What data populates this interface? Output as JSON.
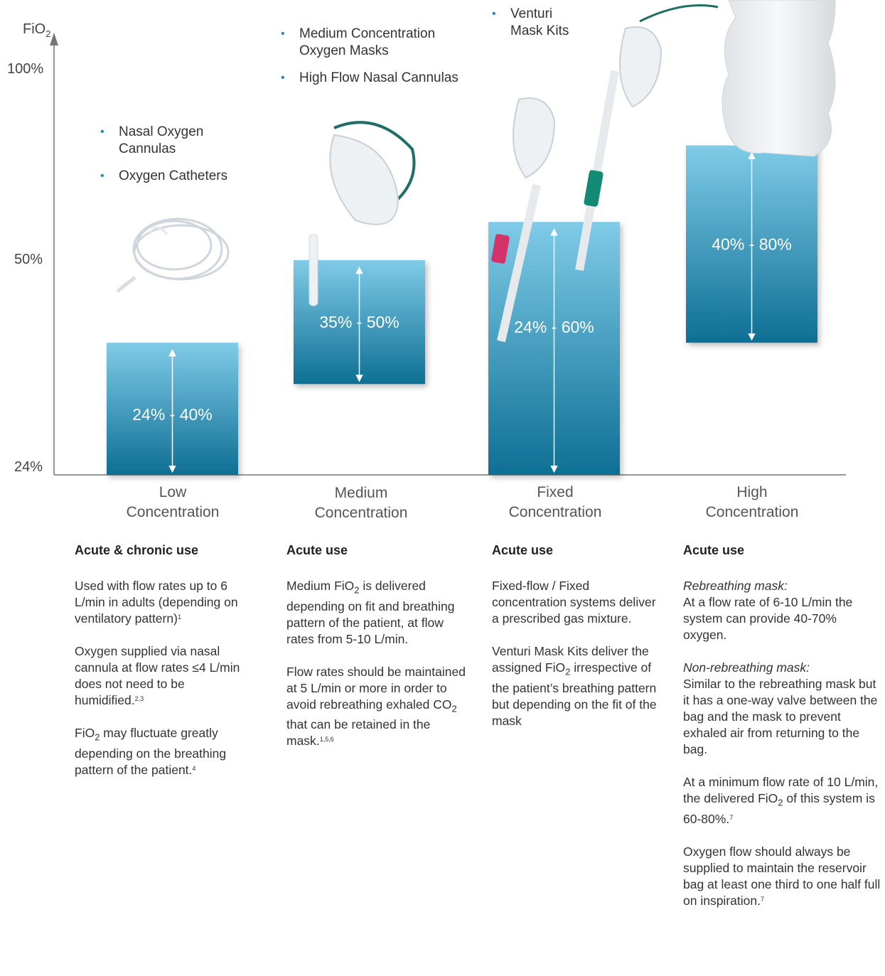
{
  "chart_data": {
    "type": "bar",
    "y_axis_label": "FiO2",
    "y_ticks": [
      "24%",
      "50%",
      "100%"
    ],
    "categories": [
      "Low Concentration",
      "Medium Concentration",
      "Fixed Concentration",
      "High Concentration"
    ],
    "ranges": [
      {
        "category": "Low Concentration",
        "low": 24,
        "high": 40,
        "label": "24% - 40%"
      },
      {
        "category": "Medium Concentration",
        "low": 35,
        "high": 50,
        "label": "35% - 50%"
      },
      {
        "category": "Fixed Concentration",
        "low": 24,
        "high": 60,
        "label": "24% - 60%"
      },
      {
        "category": "High Concentration",
        "low": 40,
        "high": 80,
        "label": "40% - 80%"
      }
    ],
    "colors": {
      "bar_top": "#7fcbe8",
      "bar_bottom": "#0e6f94",
      "axis": "#777777",
      "bullet": "#1b8fb5"
    }
  },
  "axis": {
    "fio_text": "FiO",
    "fio_sub": "2",
    "tick_100": "100%",
    "tick_50": "50%",
    "tick_24": "24%"
  },
  "bar_labels": {
    "low": "24% - 40%",
    "medium": "35% - 50%",
    "fixed": "24% - 60%",
    "high": "40% - 80%"
  },
  "categories": {
    "low": {
      "line1": "Low",
      "line2": "Concentration"
    },
    "medium": {
      "line1": "Medium",
      "line2": "Concentration"
    },
    "fixed": {
      "line1": "Fixed",
      "line2": "Concentration"
    },
    "high": {
      "line1": "High",
      "line2": "Concentration"
    }
  },
  "products": {
    "low": [
      "Nasal Oxygen Cannulas",
      "Oxygen Catheters"
    ],
    "medium": [
      "Medium Concentration Oxygen Masks",
      "High Flow Nasal Cannulas"
    ],
    "fixed": [
      "Venturi Mask Kits"
    ]
  },
  "columns": {
    "low": {
      "heading": "Acute & chronic use",
      "p1": "Used with flow rates up to 6 L/min in adults (depending on ventilatory pattern)",
      "p1_sup": "1",
      "p2": "Oxygen supplied via nasal cannula at flow rates ≤4 L/min does not need to be humidified.",
      "p2_sup": "2,3",
      "p3_pre": "FiO",
      "p3_sub": "2",
      "p3": " may fluctuate greatly depending on the breathing pattern of the patient.",
      "p3_sup": "4"
    },
    "medium": {
      "heading": "Acute use",
      "p1_pre": "Medium FiO",
      "p1_sub": "2",
      "p1": " is delivered depending on fit and breathing pattern of the patient, at flow rates from 5-10 L/min.",
      "p2_pre": "Flow rates should be maintained at 5 L/min or more in order to avoid rebreathing exhaled CO",
      "p2_sub": "2",
      "p2": " that can be retained in the mask.",
      "p2_sup": "1,5,6"
    },
    "fixed": {
      "heading": "Acute use",
      "p1": "Fixed-flow / Fixed concentration systems deliver a prescribed gas mixture.",
      "p2_pre": "Venturi Mask Kits deliver the assigned FiO",
      "p2_sub": "2",
      "p2": " irrespective of the patient’s breathing pattern but depending on the fit of the mask"
    },
    "high": {
      "heading": "Acute use",
      "p1_title": "Rebreathing mask:",
      "p1": "At a flow rate of 6-10 L/min the system can provide 40-70% oxygen.",
      "p2_title": "Non-rebreathing mask:",
      "p2": "Similar to the rebreathing mask but it has a one-way valve between the bag and the mask to prevent exhaled air from returning to the bag.",
      "p3_pre": "At a minimum flow rate of 10 L/min, the delivered FiO",
      "p3_sub": "2",
      "p3": " of this system is 60-80%.",
      "p3_sup": "7",
      "p4": "Oxygen flow should always be supplied to maintain the reservoir bag at least one third to one half full on inspiration.",
      "p4_sup": "7"
    }
  }
}
